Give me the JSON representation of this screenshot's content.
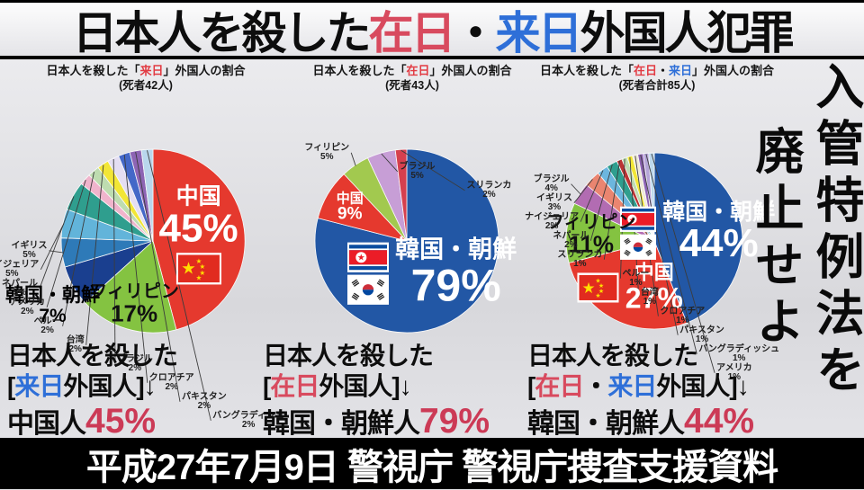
{
  "banner": {
    "segments": [
      {
        "t": "日本人を殺した",
        "c": "#0d0d0d"
      },
      {
        "t": "在日",
        "c": "#d84a5e"
      },
      {
        "t": "・",
        "c": "#0d0d0d"
      },
      {
        "t": "来日",
        "c": "#2e6fd8"
      },
      {
        "t": "外国人犯罪",
        "c": "#0d0d0d"
      }
    ]
  },
  "slogan": {
    "column1": "入管特例法を",
    "column2": "廃止せよ"
  },
  "footer": {
    "text": "平成27年7月9日 警視庁 警視庁捜査支援資料"
  },
  "chart_data": [
    {
      "type": "pie",
      "title": "日本人を殺した「来日」外国人の割合",
      "title_segments": [
        {
          "t": "日本人を殺した「",
          "c": "#151515"
        },
        {
          "t": "来日",
          "c": "#e23b43"
        },
        {
          "t": "」外国人の割合",
          "c": "#151515"
        }
      ],
      "subtitle": "(死者42人)",
      "slices": [
        {
          "label": "中国",
          "value": 45,
          "color": "#e5392e",
          "flag": "china"
        },
        {
          "label": "フィリピン",
          "value": 17,
          "color": "#84c341"
        },
        {
          "label": "韓国・朝鮮",
          "value": 7,
          "color": "#1a3f8f"
        },
        {
          "label": "イギリス",
          "value": 5,
          "color": "#2e7ab8"
        },
        {
          "label": "ナイジェリア",
          "value": 5,
          "color": "#62b4da"
        },
        {
          "label": "ネパール",
          "value": 5,
          "color": "#2f9e8e"
        },
        {
          "label": "アメリカ",
          "value": 2,
          "color": "#f0b4cc"
        },
        {
          "label": "ペルー",
          "value": 2,
          "color": "#bedcb0"
        },
        {
          "label": "台湾",
          "value": 2,
          "color": "#f2e636"
        },
        {
          "label": "ブラジル",
          "value": 2,
          "color": "#e4def2"
        },
        {
          "label": "クロアチア",
          "value": 2,
          "color": "#4468c8"
        },
        {
          "label": "パキスタン",
          "value": 2,
          "color": "#8d64b4"
        },
        {
          "label": "バングラディシュ",
          "value": 2,
          "color": "#b9d7ec"
        }
      ]
    },
    {
      "type": "pie",
      "title": "日本人を殺した「在日」外国人の割合",
      "title_segments": [
        {
          "t": "日本人を殺した「",
          "c": "#151515"
        },
        {
          "t": "在日",
          "c": "#e23b43"
        },
        {
          "t": "」外国人の割合",
          "c": "#151515"
        }
      ],
      "subtitle": "(死者43人)",
      "slices": [
        {
          "label": "韓国・朝鮮",
          "value": 79,
          "color": "#2257a5",
          "flag": "korea"
        },
        {
          "label": "中国",
          "value": 9,
          "color": "#e5392e"
        },
        {
          "label": "フィリピン",
          "value": 5,
          "color": "#a2c94f"
        },
        {
          "label": "ブラジル",
          "value": 5,
          "color": "#c79ed6"
        },
        {
          "label": "スリランカ",
          "value": 2,
          "color": "#d6404e"
        }
      ]
    },
    {
      "type": "pie",
      "title": "日本人を殺した「在日・来日」外国人の割合",
      "title_segments": [
        {
          "t": "日本人を殺した「",
          "c": "#151515"
        },
        {
          "t": "在日",
          "c": "#e23b43"
        },
        {
          "t": "・",
          "c": "#151515"
        },
        {
          "t": "来日",
          "c": "#2e6fd8"
        },
        {
          "t": "」外国人の割合",
          "c": "#151515"
        }
      ],
      "subtitle": "(死者合計85人)",
      "slices": [
        {
          "label": "韓国・朝鮮",
          "value": 44,
          "color": "#2257a5",
          "flag": "korea"
        },
        {
          "label": "中国",
          "value": 27,
          "color": "#e5392e",
          "flag": "china"
        },
        {
          "label": "フィリピン",
          "value": 11,
          "color": "#84c341"
        },
        {
          "label": "ブラジル",
          "value": 4,
          "color": "#b26cb2"
        },
        {
          "label": "イギリス",
          "value": 3,
          "color": "#ea8570"
        },
        {
          "label": "ナイジェリア",
          "value": 2,
          "color": "#6cb6de"
        },
        {
          "label": "ネパール",
          "value": 2,
          "color": "#2f9e8e"
        },
        {
          "label": "スリランカ",
          "value": 1,
          "color": "#bb3333"
        },
        {
          "label": "ペルー",
          "value": 1,
          "color": "#bedcb0"
        },
        {
          "label": "台湾",
          "value": 1,
          "color": "#f2e636"
        },
        {
          "label": "クロアチア",
          "value": 1,
          "color": "#efe9d8"
        },
        {
          "label": "パキスタン",
          "value": 1,
          "color": "#8d64b4"
        },
        {
          "label": "バングラディッシュ",
          "value": 1,
          "color": "#b5a5d8"
        },
        {
          "label": "アメリカ",
          "value": 1,
          "color": "#bcd8ec"
        }
      ]
    }
  ],
  "annotations": [
    {
      "line1": "日本人を殺した",
      "line2": [
        {
          "t": "[",
          "c": "#0d0d0d"
        },
        {
          "t": "来日",
          "c": "#2e6fd8"
        },
        {
          "t": "外国人]",
          "c": "#0d0d0d"
        },
        {
          "t": "↓",
          "c": "#0d0d0d"
        }
      ],
      "line3": [
        {
          "t": "中国人",
          "c": "#0d0d0d"
        },
        {
          "t": "45%",
          "c": "#cc3a56",
          "big": true
        }
      ]
    },
    {
      "line1": "日本人を殺した",
      "line2": [
        {
          "t": "[",
          "c": "#0d0d0d"
        },
        {
          "t": "在日",
          "c": "#d84a5e"
        },
        {
          "t": "外国人]",
          "c": "#0d0d0d"
        },
        {
          "t": "↓",
          "c": "#0d0d0d"
        }
      ],
      "line3": [
        {
          "t": "韓国・朝鮮人",
          "c": "#0d0d0d"
        },
        {
          "t": "79%",
          "c": "#cc3a56",
          "big": true
        }
      ]
    },
    {
      "line1": "日本人を殺した",
      "line2": [
        {
          "t": "[",
          "c": "#0d0d0d"
        },
        {
          "t": "在日",
          "c": "#d84a5e"
        },
        {
          "t": "・",
          "c": "#0d0d0d"
        },
        {
          "t": "来日",
          "c": "#2e6fd8"
        },
        {
          "t": "外国人]",
          "c": "#0d0d0d"
        },
        {
          "t": "↓",
          "c": "#0d0d0d"
        }
      ],
      "line3": [
        {
          "t": "韓国・朝鮮人",
          "c": "#0d0d0d"
        },
        {
          "t": "44%",
          "c": "#cc3a56",
          "big": true
        }
      ]
    }
  ]
}
